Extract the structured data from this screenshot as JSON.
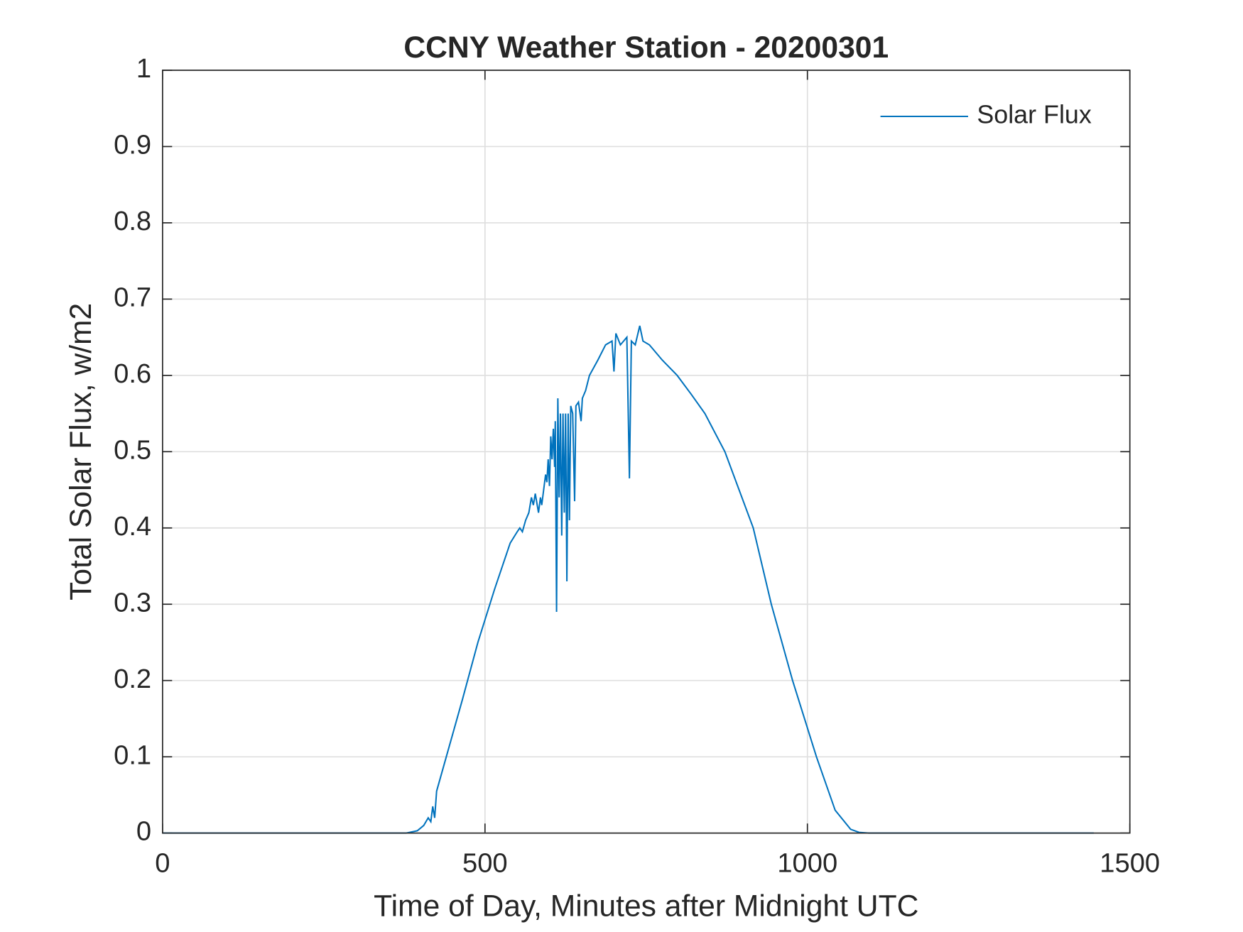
{
  "chart_data": {
    "type": "line",
    "title": "CCNY Weather Station - 20200301",
    "xlabel": "Time of Day, Minutes after Midnight UTC",
    "ylabel": "Total Solar Flux, w/m2",
    "xlim": [
      0,
      1500
    ],
    "ylim": [
      0,
      1
    ],
    "xticks": [
      0,
      500,
      1000,
      1500
    ],
    "yticks": [
      0,
      0.1,
      0.2,
      0.3,
      0.4,
      0.5,
      0.6,
      0.7,
      0.8,
      0.9,
      1
    ],
    "grid": true,
    "legend": "northeast",
    "x": [
      0,
      378,
      395,
      405,
      412,
      416,
      419,
      422,
      425,
      430,
      440,
      465,
      489,
      515,
      539,
      550,
      554,
      558,
      563,
      568,
      572,
      575,
      578,
      583,
      586,
      588,
      591,
      594,
      596,
      598,
      600,
      602,
      604,
      606,
      608,
      609,
      611,
      613,
      615,
      617,
      619,
      621,
      623,
      625,
      627,
      629,
      631,
      633,
      636,
      639,
      641,
      645,
      649,
      651,
      656,
      662,
      675,
      687,
      697,
      700,
      703,
      710,
      720,
      724,
      727,
      733,
      740,
      745,
      755,
      760,
      775,
      798,
      820,
      841,
      872,
      916,
      944,
      977,
      1014,
      1043,
      1067,
      1080,
      1095,
      1444
    ],
    "series": [
      {
        "name": "Solar Flux",
        "color": "#0072bd",
        "values": [
          0,
          0,
          0.003,
          0.01,
          0.02,
          0.015,
          0.035,
          0.02,
          0.055,
          0.07,
          0.1,
          0.175,
          0.25,
          0.32,
          0.38,
          0.395,
          0.4,
          0.395,
          0.41,
          0.42,
          0.44,
          0.43,
          0.445,
          0.42,
          0.44,
          0.43,
          0.45,
          0.47,
          0.46,
          0.49,
          0.455,
          0.52,
          0.49,
          0.53,
          0.48,
          0.54,
          0.29,
          0.57,
          0.44,
          0.55,
          0.39,
          0.55,
          0.42,
          0.55,
          0.33,
          0.55,
          0.41,
          0.56,
          0.55,
          0.435,
          0.56,
          0.565,
          0.54,
          0.57,
          0.58,
          0.6,
          0.62,
          0.64,
          0.645,
          0.605,
          0.655,
          0.64,
          0.65,
          0.465,
          0.645,
          0.64,
          0.665,
          0.645,
          0.64,
          0.635,
          0.62,
          0.6,
          0.575,
          0.55,
          0.5,
          0.4,
          0.3,
          0.2,
          0.1,
          0.03,
          0.005,
          0.001,
          0,
          0
        ]
      }
    ]
  }
}
